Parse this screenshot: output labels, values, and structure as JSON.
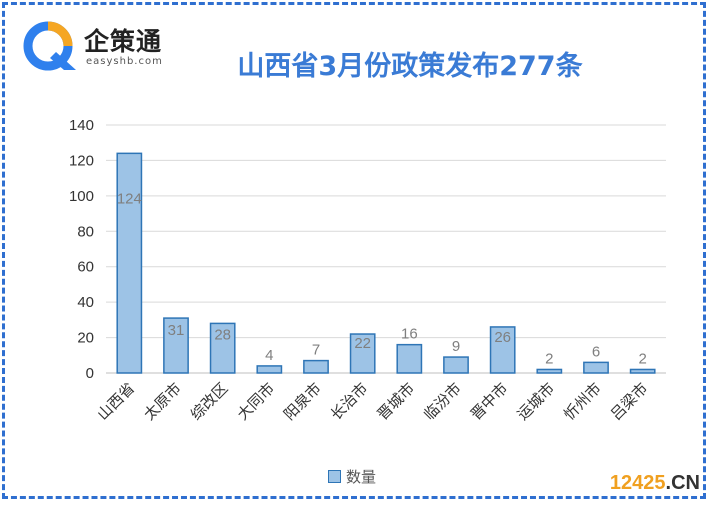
{
  "logo": {
    "name": "企策通",
    "sub": "easyshb.com",
    "icon": "q-logo-icon",
    "colors": [
      "#2f80ed",
      "#f5a623"
    ]
  },
  "watermark": {
    "num": "12425",
    "suffix": ".CN"
  },
  "chart_data": {
    "type": "bar",
    "title": "山西省3月份政策发布277条",
    "categories": [
      "山西省",
      "太原市",
      "综改区",
      "大同市",
      "阳泉市",
      "长治市",
      "晋城市",
      "临汾市",
      "晋中市",
      "运城市",
      "忻州市",
      "吕梁市"
    ],
    "series": [
      {
        "name": "数量",
        "values": [
          124,
          31,
          28,
          4,
          7,
          22,
          16,
          9,
          26,
          2,
          6,
          2
        ]
      }
    ],
    "ylim": [
      0,
      140
    ],
    "yticks": [
      0,
      20,
      40,
      60,
      80,
      100,
      120,
      140
    ],
    "grid": true,
    "legend": "bottom",
    "bar_color": "#9dc3e6",
    "bar_border": "#2e75b6"
  }
}
